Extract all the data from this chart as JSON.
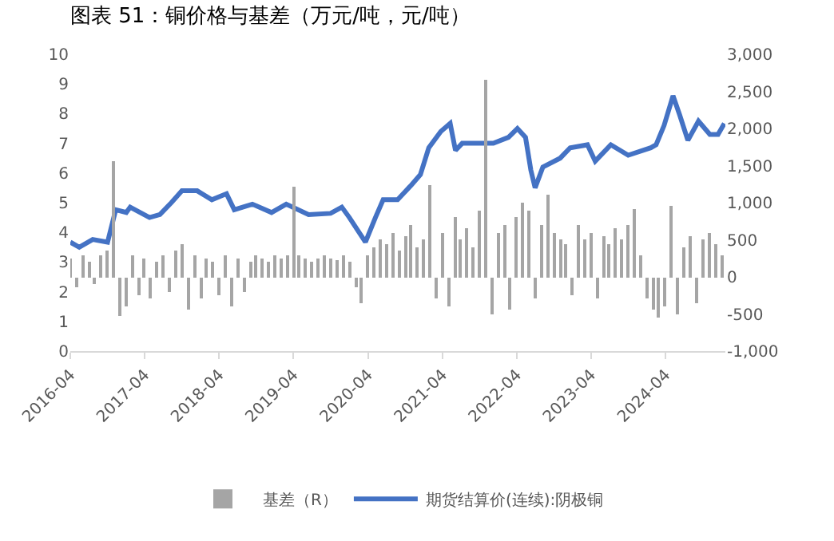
{
  "chart_data": {
    "type": "line",
    "title": "图表 51：铜价格与基差（万元/吨，元/吨）",
    "series": [
      {
        "name": "基差（R）",
        "type": "bar",
        "axis": "y2",
        "color": "#a5a5a5",
        "x": [
          "2016-04",
          "2016-05",
          "2016-06",
          "2016-07",
          "2016-08",
          "2016-09",
          "2016-10",
          "2016-11",
          "2016-12",
          "2017-01",
          "2017-02",
          "2017-03",
          "2017-04",
          "2017-05",
          "2017-06",
          "2017-07",
          "2017-08",
          "2017-09",
          "2017-10",
          "2017-11",
          "2017-12",
          "2018-01",
          "2018-02",
          "2018-03",
          "2018-04",
          "2018-05",
          "2018-06",
          "2018-07",
          "2018-08",
          "2018-09",
          "2018-10",
          "2018-11",
          "2018-12",
          "2019-01",
          "2019-02",
          "2019-03",
          "2019-04",
          "2019-05",
          "2019-06",
          "2019-07",
          "2019-08",
          "2019-09",
          "2019-10",
          "2019-11",
          "2019-12",
          "2020-01",
          "2020-02",
          "2020-03",
          "2020-04",
          "2020-05",
          "2020-06",
          "2020-07",
          "2020-08",
          "2020-09",
          "2020-10",
          "2020-11",
          "2020-12",
          "2021-01",
          "2021-02",
          "2021-03",
          "2021-04",
          "2021-05",
          "2021-06",
          "2021-07",
          "2021-08",
          "2021-09",
          "2021-10",
          "2021-11",
          "2021-12",
          "2022-01",
          "2022-02",
          "2022-03",
          "2022-04",
          "2022-05",
          "2022-06",
          "2022-07",
          "2022-08",
          "2022-09",
          "2022-10",
          "2022-11",
          "2022-12",
          "2023-01",
          "2023-02",
          "2023-03",
          "2023-04",
          "2023-05",
          "2023-06",
          "2023-07",
          "2023-08",
          "2023-09",
          "2023-10",
          "2023-11",
          "2023-12",
          "2024-01",
          "2024-02",
          "2024-03",
          "2024-04",
          "2024-05",
          "2024-06",
          "2024-07",
          "2024-08",
          "2024-09",
          "2024-10",
          "2024-11",
          "2024-12",
          "2025-01"
        ],
        "values": [
          250,
          -150,
          300,
          200,
          -100,
          280,
          350,
          1560,
          -520,
          -400,
          300,
          -250,
          250,
          -300,
          200,
          280,
          -200,
          350,
          440,
          -450,
          300,
          -300,
          250,
          200,
          -250,
          300,
          -400,
          250,
          -200,
          200,
          300,
          250,
          200,
          280,
          250,
          300,
          1220,
          300,
          250,
          200,
          250,
          300,
          250,
          220,
          280,
          200,
          -150,
          -350,
          300,
          400,
          500,
          450,
          600,
          350,
          550,
          700,
          400,
          500,
          1240,
          -300,
          600,
          -400,
          800,
          500,
          650,
          400,
          900,
          2650,
          -500,
          600,
          700,
          -450,
          800,
          1000,
          900,
          -300,
          700,
          1100,
          600,
          500,
          450,
          -250,
          700,
          500,
          600,
          -300,
          550,
          450,
          650,
          500,
          700,
          920,
          300,
          -300,
          -450,
          -550,
          -400,
          950,
          -500,
          400,
          550,
          -350,
          500,
          600,
          450,
          300
        ]
      },
      {
        "name": "期货结算价(连续):阴极铜",
        "color": "#4472c4",
        "x": [
          "2016-04-01",
          "2016-05-15",
          "2016-07-20",
          "2016-10-01",
          "2016-11-10",
          "2017-01-01",
          "2017-01-20",
          "2017-04-25",
          "2017-06-15",
          "2017-08-10",
          "2017-10-01",
          "2017-12-15",
          "2018-02-25",
          "2018-05-08",
          "2018-06-15",
          "2018-09-12",
          "2018-12-15",
          "2019-02-25",
          "2019-06-15",
          "2019-10-01",
          "2019-11-25",
          "2020-01-01",
          "2020-03-20",
          "2020-05-08",
          "2020-06-15",
          "2020-08-25",
          "2020-11-01",
          "2020-12-15",
          "2021-01-25",
          "2021-03-25",
          "2021-05-10",
          "2021-06-05",
          "2021-07-08",
          "2021-10-01",
          "2021-12-08",
          "2022-02-20",
          "2022-04-05",
          "2022-05-15",
          "2022-06-10",
          "2022-07-01",
          "2022-08-08",
          "2022-11-01",
          "2022-12-20",
          "2023-03-15",
          "2023-04-22",
          "2023-07-08",
          "2023-10-01",
          "2024-01-20",
          "2024-02-15",
          "2024-03-25",
          "2024-05-08",
          "2024-06-10",
          "2024-07-20",
          "2024-09-10",
          "2024-11-05",
          "2024-12-15",
          "2025-01-15"
        ],
        "values": [
          3.67,
          3.5,
          3.76,
          3.67,
          4.76,
          4.67,
          4.85,
          4.5,
          4.6,
          5.0,
          5.4,
          5.4,
          5.1,
          5.3,
          4.76,
          4.95,
          4.67,
          4.95,
          4.6,
          4.64,
          4.85,
          4.5,
          3.67,
          4.5,
          5.1,
          5.1,
          5.6,
          5.95,
          6.85,
          7.4,
          7.67,
          6.76,
          7.0,
          7.0,
          7.0,
          7.2,
          7.5,
          7.2,
          6.1,
          5.5,
          6.2,
          6.5,
          6.85,
          6.95,
          6.4,
          6.95,
          6.6,
          6.85,
          6.95,
          7.6,
          8.6,
          7.95,
          7.1,
          7.75,
          7.3,
          7.3,
          7.67
        ]
      }
    ],
    "xlim": [
      "2016-04-01",
      "2025-01-20"
    ],
    "xticks": [
      "2016-04",
      "2017-04",
      "2018-04",
      "2019-04",
      "2020-04",
      "2021-04",
      "2022-04",
      "2023-04",
      "2024-04"
    ],
    "ylim": [
      0,
      10
    ],
    "yticks": [
      0,
      1,
      2,
      3,
      4,
      5,
      6,
      7,
      8,
      9,
      10
    ],
    "y2lim": [
      -1000,
      3000
    ],
    "y2ticks": [
      {
        "value": -1000,
        "label": "-1,000"
      },
      -500,
      0,
      500,
      {
        "value": 1000,
        "label": "1,000"
      },
      {
        "value": 1500,
        "label": "1,500"
      },
      {
        "value": 2000,
        "label": "2,000"
      },
      {
        "value": 2500,
        "label": "2,500"
      },
      {
        "value": 3000,
        "label": "3,000"
      }
    ],
    "legend": "bottom"
  }
}
